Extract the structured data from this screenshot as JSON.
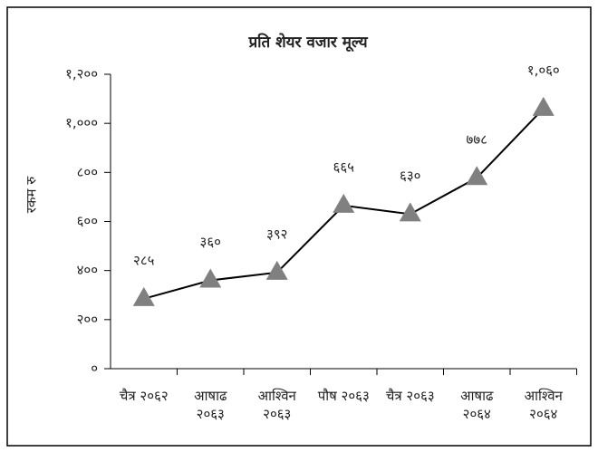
{
  "chart_data": {
    "type": "line",
    "title": "प्रति शेयर वजार मूल्य",
    "y_label": "रकम रु",
    "categories": [
      "चैत्र २०६२",
      "आषाढ २०६३",
      "आश्विन २०६३",
      "पौष २०६३",
      "चैत्र २०६३",
      "आषाढ २०६४",
      "आश्विन २०६४"
    ],
    "series": [
      {
        "name": "प्रति शेयर वजार मूल्य",
        "color": "#000000",
        "marker_color": "#808080",
        "values": [
          285,
          360,
          392,
          665,
          630,
          778,
          1060
        ],
        "value_labels": [
          "२८५",
          "३६०",
          "३९२",
          "६६५",
          "६३०",
          "७७८",
          "१,०६०"
        ]
      }
    ],
    "ylim": [
      0,
      1200
    ],
    "yticks": [
      {
        "value": 0,
        "label": "०"
      },
      {
        "value": 200,
        "label": "२००"
      },
      {
        "value": 400,
        "label": "४००"
      },
      {
        "value": 600,
        "label": "६००"
      },
      {
        "value": 800,
        "label": "८००"
      },
      {
        "value": 1000,
        "label": "१,०००"
      },
      {
        "value": 1200,
        "label": "१,२००"
      }
    ],
    "grid": false
  }
}
